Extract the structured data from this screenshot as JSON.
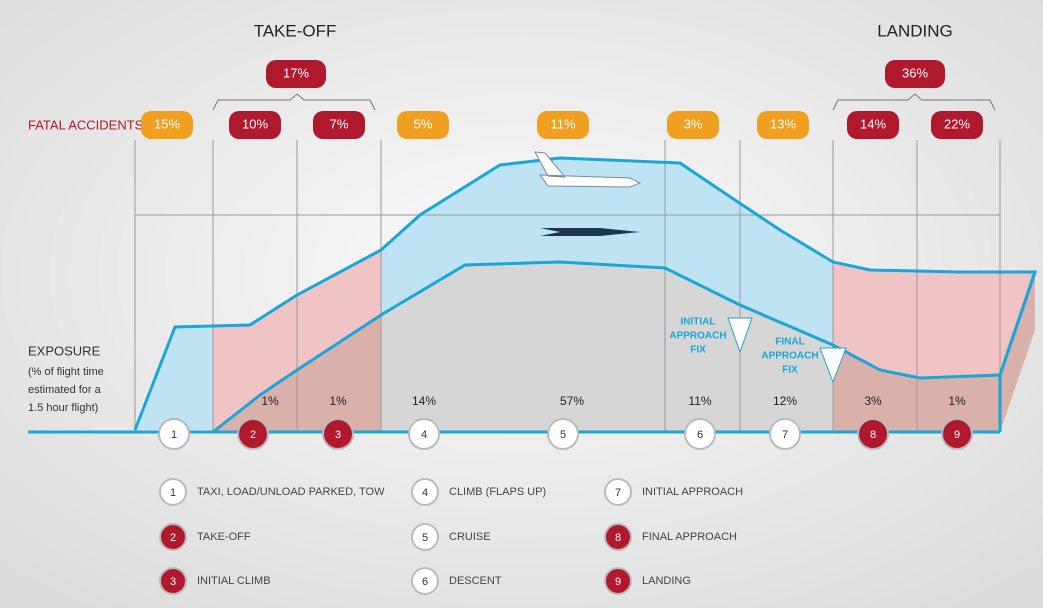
{
  "headers": {
    "takeoff": "TAKE-OFF",
    "landing": "LANDING"
  },
  "group_totals": {
    "takeoff": "17%",
    "landing": "36%"
  },
  "fatal_label": "FATAL ACCIDENTS",
  "exposure_label": [
    "EXPOSURE",
    "(% of flight time",
    "estimated for a",
    "1.5 hour flight)"
  ],
  "annotations": {
    "initial_fix": [
      "INITIAL",
      "APPROACH",
      "FIX"
    ],
    "final_fix": [
      "FINAL",
      "APPROACH",
      "FIX"
    ]
  },
  "phases": [
    {
      "number": "1",
      "name": "TAXI, LOAD/UNLOAD PARKED, TOW",
      "fatal": "15%"
    },
    {
      "number": "2",
      "name": "TAKE-OFF",
      "fatal": "10%",
      "exposure": "1%"
    },
    {
      "number": "3",
      "name": "INITIAL CLIMB",
      "fatal": "7%",
      "exposure": "1%"
    },
    {
      "number": "4",
      "name": "CLIMB (FLAPS UP)",
      "fatal": "5%",
      "exposure": "14%"
    },
    {
      "number": "5",
      "name": "CRUISE",
      "fatal": "11%",
      "exposure": "57%"
    },
    {
      "number": "6",
      "name": "DESCENT",
      "fatal": "3%",
      "exposure": "11%"
    },
    {
      "number": "7",
      "name": "INITIAL APPROACH",
      "fatal": "13%",
      "exposure": "12%"
    },
    {
      "number": "8",
      "name": "FINAL APPROACH",
      "fatal": "14%",
      "exposure": "3%"
    },
    {
      "number": "9",
      "name": "LANDING",
      "fatal": "22%",
      "exposure": "1%"
    }
  ]
}
